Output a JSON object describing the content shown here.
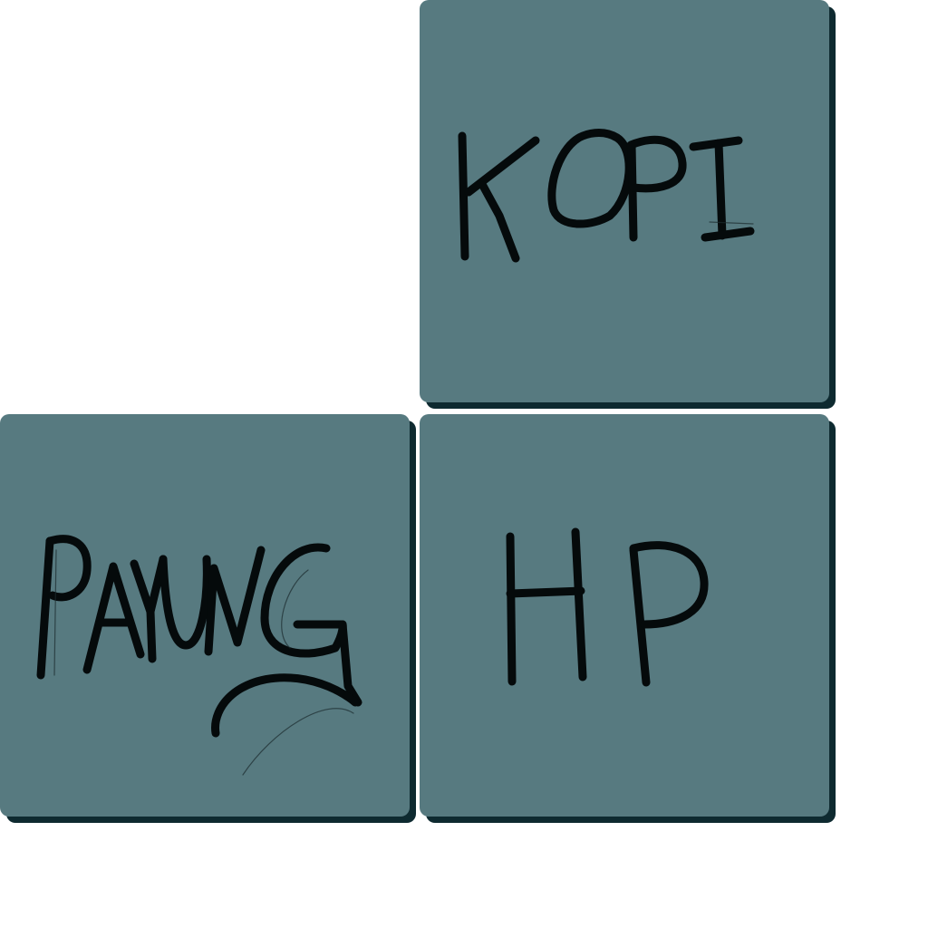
{
  "canvas": {
    "background": "#ffffff",
    "tile_color": "#577a80",
    "shadow_color": "#0e2a30",
    "ink_color": "#050a0b"
  },
  "tiles": [
    {
      "id": "kopi",
      "label": "KOPI"
    },
    {
      "id": "payung",
      "label": "PAYUNG"
    },
    {
      "id": "hp",
      "label": "HP"
    }
  ]
}
